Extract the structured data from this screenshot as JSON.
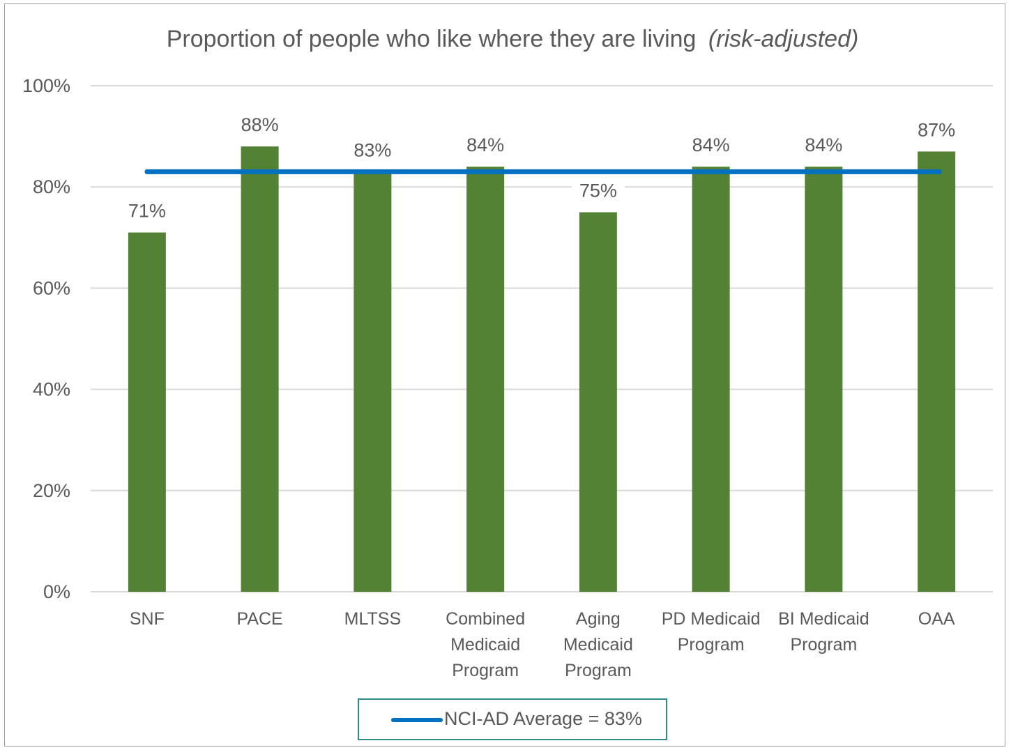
{
  "chart_data": {
    "type": "bar",
    "title": "Proportion of people who like where they are living",
    "title_suffix": "(risk-adjusted)",
    "categories": [
      [
        "SNF"
      ],
      [
        "PACE"
      ],
      [
        "MLTSS"
      ],
      [
        "Combined",
        "Medicaid",
        "Program"
      ],
      [
        "Aging",
        "Medicaid",
        "Program"
      ],
      [
        "PD Medicaid",
        "Program"
      ],
      [
        "BI Medicaid",
        "Program"
      ],
      [
        "OAA"
      ]
    ],
    "values": [
      71,
      88,
      83,
      84,
      75,
      84,
      84,
      87
    ],
    "data_labels": [
      "71%",
      "88%",
      "83%",
      "84%",
      "75%",
      "84%",
      "84%",
      "87%"
    ],
    "ylim": [
      0,
      100
    ],
    "yticks": [
      "0%",
      "20%",
      "40%",
      "60%",
      "80%",
      "100%"
    ],
    "ytick_values": [
      0,
      20,
      40,
      60,
      80,
      100
    ],
    "reference_line": {
      "label": "NCI-AD Average = 83%",
      "value": 83
    },
    "grid": true,
    "legend_position": "bottom",
    "colors": {
      "bar": "#548235",
      "reference_line": "#0070c0",
      "grid": "#d9d9d9",
      "legend_border": "#2e8b8b"
    }
  }
}
